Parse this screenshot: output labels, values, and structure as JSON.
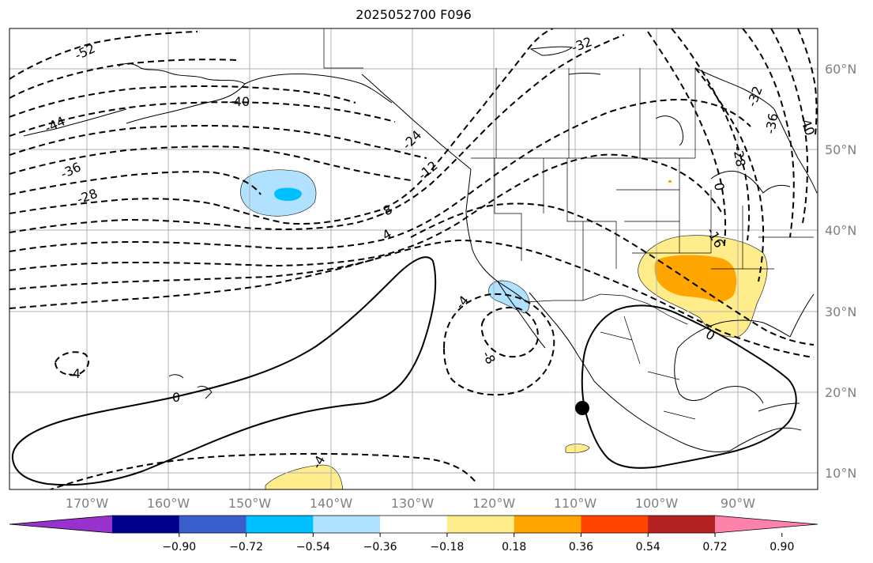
{
  "title": "2025052700 F096",
  "longitude_labels": [
    "170°W",
    "160°W",
    "150°W",
    "140°W",
    "130°W",
    "120°W",
    "110°W",
    "100°W",
    "90°W"
  ],
  "latitude_labels": [
    "60°N",
    "50°N",
    "40°N",
    "30°N",
    "20°N",
    "10°N"
  ],
  "contour_labels": [
    "-52",
    "-44",
    "-40",
    "-36",
    "-28",
    "-24",
    "-12",
    "-8",
    "-4",
    "4",
    "0",
    "-4",
    "-8",
    "-32",
    "-32",
    "-28",
    "-36",
    "-40",
    "-16",
    "0",
    "0",
    "-4"
  ],
  "colorbar": {
    "tick_labels": [
      "−0.90",
      "−0.72",
      "−0.54",
      "−0.36",
      "−0.18",
      "0.18",
      "0.36",
      "0.54",
      "0.72",
      "0.90"
    ],
    "colors": [
      "#9932cc",
      "#00008b",
      "#3a5fcd",
      "#00bfff",
      "#b0e2ff",
      "#ffffff",
      "#ffec8b",
      "#ffa500",
      "#ff4500",
      "#b22222",
      "#ff82ab"
    ]
  },
  "shading_colors": {
    "light_blue": "#b0e2ff",
    "blue": "#00bfff",
    "light_yellow": "#ffec8b",
    "orange": "#ffa500"
  },
  "marker": {
    "lat": 18,
    "lon": -109
  }
}
